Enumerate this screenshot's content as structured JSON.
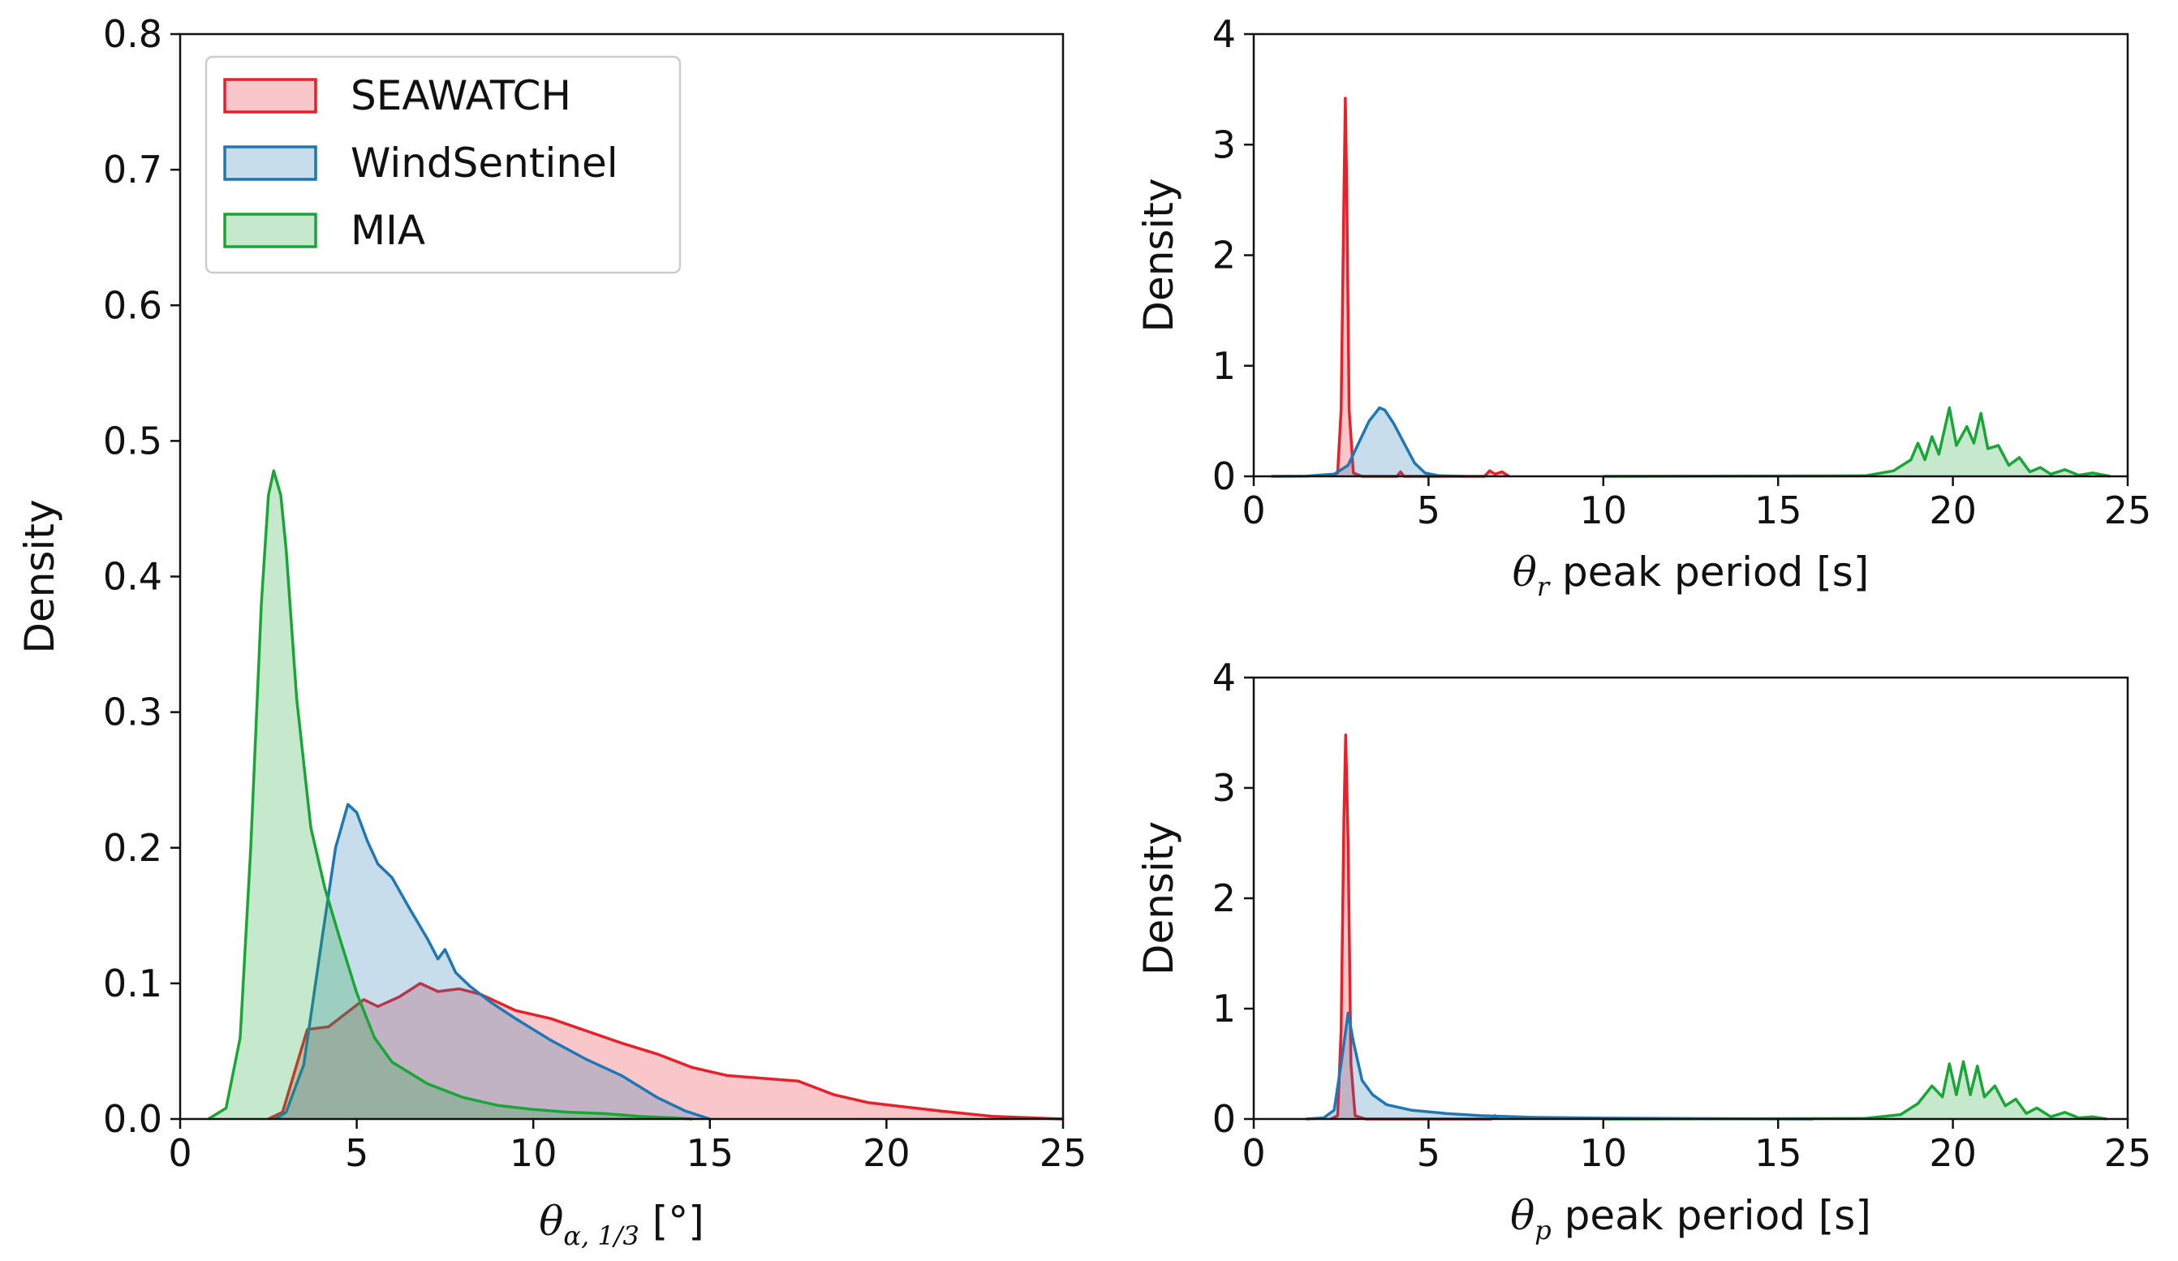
{
  "colors": {
    "SEAWATCH": "#e8202a",
    "WindSentinel": "#1f77b4",
    "MIA": "#1aa637"
  },
  "legend": {
    "items": [
      "SEAWATCH",
      "WindSentinel",
      "MIA"
    ]
  },
  "chart_data": [
    {
      "id": "left",
      "type": "area",
      "title": "",
      "xlabel_symbol": "θ",
      "xlabel_sub": "α, 1/3",
      "xlabel_rest": " [°]",
      "ylabel": "Density",
      "xlim": [
        0,
        25
      ],
      "ylim": [
        0,
        0.8
      ],
      "xticks": [
        0,
        5,
        10,
        15,
        20,
        25
      ],
      "xtick_labels": [
        "0",
        "5",
        "10",
        "15",
        "20",
        "25"
      ],
      "yticks": [
        0.0,
        0.1,
        0.2,
        0.3,
        0.4,
        0.5,
        0.6,
        0.7,
        0.8
      ],
      "ytick_labels": [
        "0.0",
        "0.1",
        "0.2",
        "0.3",
        "0.4",
        "0.5",
        "0.6",
        "0.7",
        "0.8"
      ],
      "legend": "top-left",
      "series": [
        {
          "name": "SEAWATCH",
          "points": [
            [
              2.5,
              0
            ],
            [
              2.9,
              0.005
            ],
            [
              3.3,
              0.04
            ],
            [
              3.6,
              0.066
            ],
            [
              4.2,
              0.068
            ],
            [
              4.7,
              0.078
            ],
            [
              5.2,
              0.088
            ],
            [
              5.6,
              0.083
            ],
            [
              6.2,
              0.09
            ],
            [
              6.8,
              0.1
            ],
            [
              7.3,
              0.094
            ],
            [
              7.9,
              0.096
            ],
            [
              8.5,
              0.092
            ],
            [
              9.5,
              0.08
            ],
            [
              10.5,
              0.074
            ],
            [
              11.5,
              0.065
            ],
            [
              12.5,
              0.056
            ],
            [
              13.5,
              0.048
            ],
            [
              14.5,
              0.038
            ],
            [
              15.5,
              0.032
            ],
            [
              16.5,
              0.03
            ],
            [
              17.5,
              0.028
            ],
            [
              18.5,
              0.018
            ],
            [
              19.5,
              0.012
            ],
            [
              20.5,
              0.009
            ],
            [
              21.5,
              0.006
            ],
            [
              23,
              0.002
            ],
            [
              25,
              0
            ]
          ]
        },
        {
          "name": "WindSentinel",
          "points": [
            [
              2.7,
              0
            ],
            [
              3.0,
              0.005
            ],
            [
              3.5,
              0.04
            ],
            [
              4.0,
              0.13
            ],
            [
              4.4,
              0.2
            ],
            [
              4.75,
              0.232
            ],
            [
              5.0,
              0.226
            ],
            [
              5.3,
              0.205
            ],
            [
              5.6,
              0.188
            ],
            [
              6.0,
              0.178
            ],
            [
              6.5,
              0.155
            ],
            [
              7.0,
              0.133
            ],
            [
              7.3,
              0.118
            ],
            [
              7.5,
              0.125
            ],
            [
              7.8,
              0.108
            ],
            [
              8.2,
              0.098
            ],
            [
              8.8,
              0.086
            ],
            [
              9.5,
              0.074
            ],
            [
              10.5,
              0.058
            ],
            [
              11.5,
              0.044
            ],
            [
              12.5,
              0.032
            ],
            [
              13.5,
              0.016
            ],
            [
              14.3,
              0.006
            ],
            [
              15,
              0
            ]
          ]
        },
        {
          "name": "MIA",
          "points": [
            [
              0.8,
              0
            ],
            [
              1.3,
              0.008
            ],
            [
              1.7,
              0.06
            ],
            [
              2.0,
              0.2
            ],
            [
              2.3,
              0.38
            ],
            [
              2.5,
              0.46
            ],
            [
              2.65,
              0.478
            ],
            [
              2.85,
              0.46
            ],
            [
              3.0,
              0.42
            ],
            [
              3.3,
              0.31
            ],
            [
              3.7,
              0.215
            ],
            [
              4.1,
              0.17
            ],
            [
              4.5,
              0.135
            ],
            [
              5.0,
              0.093
            ],
            [
              5.5,
              0.06
            ],
            [
              6.0,
              0.042
            ],
            [
              7.0,
              0.026
            ],
            [
              8.0,
              0.016
            ],
            [
              9.0,
              0.01
            ],
            [
              10.0,
              0.007
            ],
            [
              11.0,
              0.005
            ],
            [
              12.0,
              0.004
            ],
            [
              13.0,
              0.002
            ],
            [
              14.0,
              0.0007
            ],
            [
              14.5,
              0
            ]
          ]
        }
      ]
    },
    {
      "id": "top-right",
      "type": "area",
      "title": "",
      "xlabel_symbol": "θ",
      "xlabel_sub": "r",
      "xlabel_rest": " peak period [s]",
      "ylabel": "Density",
      "xlim": [
        0,
        25
      ],
      "ylim": [
        0,
        4
      ],
      "xticks": [
        0,
        5,
        10,
        15,
        20,
        25
      ],
      "xtick_labels": [
        "0",
        "5",
        "10",
        "15",
        "20",
        "25"
      ],
      "yticks": [
        0,
        1,
        2,
        3,
        4
      ],
      "ytick_labels": [
        "0",
        "1",
        "2",
        "3",
        "4"
      ],
      "series": [
        {
          "name": "SEAWATCH",
          "points": [
            [
              2.2,
              0
            ],
            [
              2.4,
              0.03
            ],
            [
              2.5,
              0.6
            ],
            [
              2.58,
              2.5
            ],
            [
              2.62,
              3.42
            ],
            [
              2.66,
              2.6
            ],
            [
              2.73,
              0.6
            ],
            [
              2.85,
              0.03
            ],
            [
              3.1,
              0
            ],
            [
              4.1,
              0
            ],
            [
              4.2,
              0.04
            ],
            [
              4.3,
              0
            ],
            [
              6.6,
              0
            ],
            [
              6.75,
              0.05
            ],
            [
              6.9,
              0.02
            ],
            [
              7.1,
              0.04
            ],
            [
              7.3,
              0
            ]
          ]
        },
        {
          "name": "WindSentinel",
          "points": [
            [
              0.5,
              0
            ],
            [
              1.5,
              0.002
            ],
            [
              2.3,
              0.02
            ],
            [
              2.7,
              0.1
            ],
            [
              3.0,
              0.3
            ],
            [
              3.3,
              0.5
            ],
            [
              3.6,
              0.62
            ],
            [
              3.75,
              0.6
            ],
            [
              4.0,
              0.48
            ],
            [
              4.3,
              0.3
            ],
            [
              4.6,
              0.12
            ],
            [
              4.9,
              0.03
            ],
            [
              5.3,
              0.005
            ],
            [
              6,
              0
            ]
          ]
        },
        {
          "name": "MIA",
          "points": [
            [
              10,
              0
            ],
            [
              17.5,
              0.005
            ],
            [
              18.3,
              0.05
            ],
            [
              18.8,
              0.15
            ],
            [
              19.0,
              0.3
            ],
            [
              19.2,
              0.15
            ],
            [
              19.4,
              0.36
            ],
            [
              19.6,
              0.2
            ],
            [
              19.9,
              0.62
            ],
            [
              20.1,
              0.28
            ],
            [
              20.4,
              0.45
            ],
            [
              20.6,
              0.3
            ],
            [
              20.8,
              0.57
            ],
            [
              21.0,
              0.25
            ],
            [
              21.3,
              0.28
            ],
            [
              21.6,
              0.1
            ],
            [
              21.9,
              0.17
            ],
            [
              22.2,
              0.04
            ],
            [
              22.5,
              0.08
            ],
            [
              22.8,
              0.02
            ],
            [
              23.2,
              0.06
            ],
            [
              23.6,
              0.01
            ],
            [
              24.0,
              0.03
            ],
            [
              24.5,
              0
            ]
          ]
        }
      ]
    },
    {
      "id": "bottom-right",
      "type": "area",
      "title": "",
      "xlabel_symbol": "θ",
      "xlabel_sub": "p",
      "xlabel_rest": " peak period [s]",
      "ylabel": "Density",
      "xlim": [
        0,
        25
      ],
      "ylim": [
        0,
        4
      ],
      "xticks": [
        0,
        5,
        10,
        15,
        20,
        25
      ],
      "xtick_labels": [
        "0",
        "5",
        "10",
        "15",
        "20",
        "25"
      ],
      "yticks": [
        0,
        1,
        2,
        3,
        4
      ],
      "ytick_labels": [
        "0",
        "1",
        "2",
        "3",
        "4"
      ],
      "series": [
        {
          "name": "SEAWATCH",
          "points": [
            [
              2.2,
              0
            ],
            [
              2.4,
              0.03
            ],
            [
              2.5,
              0.8
            ],
            [
              2.58,
              2.7
            ],
            [
              2.63,
              3.48
            ],
            [
              2.7,
              2.5
            ],
            [
              2.78,
              0.5
            ],
            [
              2.9,
              0.03
            ],
            [
              3.2,
              0
            ],
            [
              6.8,
              0
            ],
            [
              6.9,
              0.03
            ],
            [
              7.0,
              0
            ]
          ]
        },
        {
          "name": "WindSentinel",
          "points": [
            [
              1.5,
              0
            ],
            [
              2.0,
              0.01
            ],
            [
              2.3,
              0.08
            ],
            [
              2.5,
              0.5
            ],
            [
              2.7,
              0.96
            ],
            [
              2.85,
              0.7
            ],
            [
              3.1,
              0.35
            ],
            [
              3.4,
              0.22
            ],
            [
              3.8,
              0.13
            ],
            [
              4.5,
              0.08
            ],
            [
              5.5,
              0.05
            ],
            [
              6.5,
              0.03
            ],
            [
              8,
              0.015
            ],
            [
              10,
              0.008
            ],
            [
              13,
              0.004
            ],
            [
              16,
              0
            ]
          ]
        },
        {
          "name": "MIA",
          "points": [
            [
              10,
              0
            ],
            [
              17.5,
              0.005
            ],
            [
              18.5,
              0.04
            ],
            [
              19.0,
              0.14
            ],
            [
              19.4,
              0.3
            ],
            [
              19.7,
              0.2
            ],
            [
              19.9,
              0.5
            ],
            [
              20.1,
              0.22
            ],
            [
              20.3,
              0.52
            ],
            [
              20.5,
              0.22
            ],
            [
              20.7,
              0.48
            ],
            [
              20.9,
              0.2
            ],
            [
              21.2,
              0.3
            ],
            [
              21.5,
              0.12
            ],
            [
              21.8,
              0.18
            ],
            [
              22.1,
              0.05
            ],
            [
              22.4,
              0.1
            ],
            [
              22.8,
              0.02
            ],
            [
              23.2,
              0.06
            ],
            [
              23.6,
              0.01
            ],
            [
              24.0,
              0.02
            ],
            [
              24.4,
              0
            ]
          ]
        }
      ]
    }
  ]
}
